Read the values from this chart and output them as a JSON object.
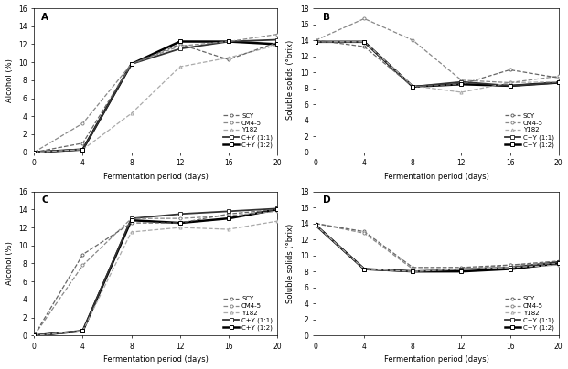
{
  "x_days": [
    0,
    4,
    8,
    12,
    16,
    20
  ],
  "panel_labels": [
    "A",
    "B",
    "C",
    "D"
  ],
  "legend_labels": [
    "SCY",
    "CM4-5",
    "Y182",
    "C+Y (1:1)",
    "C+Y (1:2)"
  ],
  "markers": [
    "o",
    "o",
    "^",
    "s",
    "s"
  ],
  "linestyles": [
    "--",
    "--",
    "--",
    "-",
    "-"
  ],
  "linewidths": [
    0.9,
    0.9,
    0.9,
    1.3,
    1.8
  ],
  "colors": [
    "#666666",
    "#888888",
    "#aaaaaa",
    "#333333",
    "#000000"
  ],
  "A_alcohol": {
    "SCY": [
      0,
      1.0,
      9.8,
      12.0,
      10.3,
      12.2
    ],
    "CM4-5": [
      0,
      3.2,
      9.8,
      11.8,
      12.3,
      13.1
    ],
    "Y182": [
      0,
      0.3,
      4.3,
      9.5,
      10.5,
      11.9
    ],
    "CY11": [
      0,
      0.3,
      9.8,
      11.5,
      12.3,
      12.5
    ],
    "CY12": [
      0,
      0.3,
      9.8,
      12.3,
      12.3,
      12.0
    ]
  },
  "B_solids": {
    "SCY": [
      14.0,
      13.2,
      8.2,
      8.5,
      10.3,
      9.3
    ],
    "CM4-5": [
      14.0,
      16.7,
      14.0,
      9.0,
      8.7,
      9.5
    ],
    "Y182": [
      13.8,
      13.8,
      8.3,
      7.5,
      8.7,
      8.8
    ],
    "CY11": [
      13.8,
      13.8,
      8.2,
      8.8,
      8.3,
      8.7
    ],
    "CY12": [
      13.8,
      13.8,
      8.2,
      8.5,
      8.3,
      8.7
    ]
  },
  "C_alcohol": {
    "SCY": [
      0,
      9.0,
      12.5,
      12.5,
      13.5,
      14.0
    ],
    "CM4-5": [
      0,
      7.8,
      13.0,
      13.0,
      13.3,
      13.8
    ],
    "Y182": [
      0,
      0.5,
      11.5,
      12.0,
      11.8,
      12.7
    ],
    "CY11": [
      0,
      0.5,
      13.0,
      13.5,
      13.8,
      14.1
    ],
    "CY12": [
      0,
      0.5,
      12.8,
      12.5,
      13.0,
      14.0
    ]
  },
  "D_solids": {
    "SCY": [
      14.0,
      13.0,
      8.5,
      8.5,
      8.8,
      9.3
    ],
    "CM4-5": [
      14.0,
      12.8,
      8.3,
      8.3,
      8.8,
      9.0
    ],
    "Y182": [
      13.8,
      8.3,
      8.0,
      8.3,
      8.5,
      8.8
    ],
    "CY11": [
      13.8,
      8.3,
      8.0,
      8.3,
      8.5,
      9.2
    ],
    "CY12": [
      13.8,
      8.3,
      8.0,
      8.0,
      8.3,
      9.0
    ]
  },
  "alcohol_ylim": [
    0,
    16
  ],
  "alcohol_yticks": [
    0,
    2,
    4,
    6,
    8,
    10,
    12,
    14,
    16
  ],
  "solids_ylim": [
    0,
    18
  ],
  "solids_yticks": [
    0,
    2,
    4,
    6,
    8,
    10,
    12,
    14,
    16,
    18
  ],
  "xlim": [
    0,
    20
  ],
  "xticks": [
    0,
    4,
    8,
    12,
    16,
    20
  ],
  "xlabel": "Fermentation period (days)",
  "ylabel_alcohol": "Alcohol (%)",
  "ylabel_solids": "Soluble solids (°brix)",
  "fontsize_label": 6.0,
  "fontsize_tick": 5.5,
  "fontsize_legend": 5.0,
  "fontsize_panel": 7.5
}
